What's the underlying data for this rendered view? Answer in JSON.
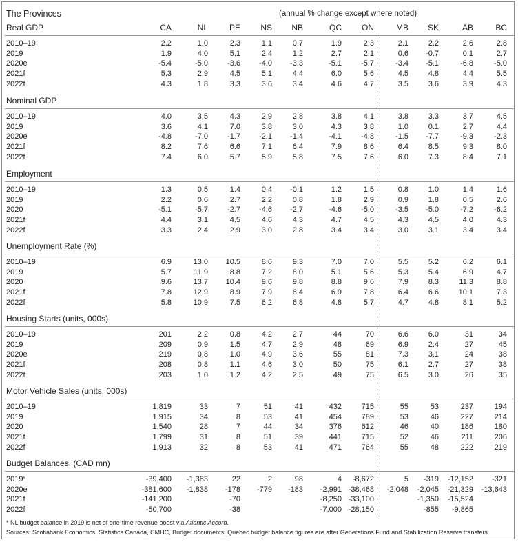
{
  "title": "The Provinces",
  "subtitle": "(annual % change except where noted)",
  "columns": [
    "CA",
    "NL",
    "PE",
    "NS",
    "NB",
    "QC",
    "ON",
    "MB",
    "SK",
    "AB",
    "BC"
  ],
  "sections": [
    {
      "title": "Real GDP",
      "rows": [
        {
          "label": "2010–19",
          "values": [
            "2.2",
            "1.0",
            "2.3",
            "1.1",
            "0.7",
            "1.9",
            "2.3",
            "2.1",
            "2.2",
            "2.6",
            "2.8"
          ]
        },
        {
          "label": "2019",
          "values": [
            "1.9",
            "4.0",
            "5.1",
            "2.4",
            "1.2",
            "2.7",
            "2.1",
            "0.6",
            "-0.7",
            "0.1",
            "2.7"
          ]
        },
        {
          "label": "2020e",
          "values": [
            "-5.4",
            "-5.0",
            "-3.6",
            "-4.0",
            "-3.3",
            "-5.1",
            "-5.7",
            "-3.4",
            "-5.1",
            "-6.8",
            "-5.0"
          ]
        },
        {
          "label": "2021f",
          "values": [
            "5.3",
            "2.9",
            "4.5",
            "5.1",
            "4.4",
            "6.0",
            "5.6",
            "4.5",
            "4.8",
            "4.4",
            "5.5"
          ]
        },
        {
          "label": "2022f",
          "values": [
            "4.3",
            "1.8",
            "3.3",
            "3.6",
            "3.4",
            "4.6",
            "4.7",
            "3.5",
            "3.6",
            "3.9",
            "4.3"
          ]
        }
      ]
    },
    {
      "title": "Nominal GDP",
      "rows": [
        {
          "label": "2010–19",
          "values": [
            "4.0",
            "3.5",
            "4.3",
            "2.9",
            "2.8",
            "3.8",
            "4.1",
            "3.8",
            "3.3",
            "3.7",
            "4.5"
          ]
        },
        {
          "label": "2019",
          "values": [
            "3.6",
            "4.1",
            "7.0",
            "3.8",
            "3.0",
            "4.3",
            "3.8",
            "1.0",
            "0.1",
            "2.7",
            "4.4"
          ]
        },
        {
          "label": "2020e",
          "values": [
            "-4.8",
            "-7.0",
            "-1.7",
            "-2.1",
            "-1.4",
            "-4.1",
            "-4.8",
            "-1.5",
            "-7.7",
            "-9.3",
            "-2.3"
          ]
        },
        {
          "label": "2021f",
          "values": [
            "8.2",
            "7.6",
            "6.6",
            "7.1",
            "6.4",
            "7.9",
            "8.6",
            "6.4",
            "8.5",
            "9.3",
            "8.0"
          ]
        },
        {
          "label": "2022f",
          "values": [
            "7.4",
            "6.0",
            "5.7",
            "5.9",
            "5.8",
            "7.5",
            "7.6",
            "6.0",
            "7.3",
            "8.4",
            "7.1"
          ]
        }
      ]
    },
    {
      "title": "Employment",
      "rows": [
        {
          "label": "2010–19",
          "values": [
            "1.3",
            "0.5",
            "1.4",
            "0.4",
            "-0.1",
            "1.2",
            "1.5",
            "0.8",
            "1.0",
            "1.4",
            "1.6"
          ]
        },
        {
          "label": "2019",
          "values": [
            "2.2",
            "0.6",
            "2.7",
            "2.2",
            "0.8",
            "1.8",
            "2.9",
            "0.9",
            "1.8",
            "0.5",
            "2.6"
          ]
        },
        {
          "label": "2020",
          "values": [
            "-5.1",
            "-5.7",
            "-2.7",
            "-4.6",
            "-2.7",
            "-4.6",
            "-5.0",
            "-3.5",
            "-5.0",
            "-7.2",
            "-6.2"
          ]
        },
        {
          "label": "2021f",
          "values": [
            "4.4",
            "3.1",
            "4.5",
            "4.6",
            "4.3",
            "4.7",
            "4.5",
            "4.3",
            "4.5",
            "4.0",
            "4.3"
          ]
        },
        {
          "label": "2022f",
          "values": [
            "3.3",
            "2.4",
            "2.9",
            "3.0",
            "2.8",
            "3.4",
            "3.4",
            "3.0",
            "3.1",
            "3.4",
            "3.4"
          ]
        }
      ]
    },
    {
      "title": "Unemployment Rate (%)",
      "rows": [
        {
          "label": "2010–19",
          "values": [
            "6.9",
            "13.0",
            "10.5",
            "8.6",
            "9.3",
            "7.0",
            "7.0",
            "5.5",
            "5.2",
            "6.2",
            "6.1"
          ]
        },
        {
          "label": "2019",
          "values": [
            "5.7",
            "11.9",
            "8.8",
            "7.2",
            "8.0",
            "5.1",
            "5.6",
            "5.3",
            "5.4",
            "6.9",
            "4.7"
          ]
        },
        {
          "label": "2020",
          "values": [
            "9.6",
            "13.7",
            "10.4",
            "9.6",
            "9.8",
            "8.8",
            "9.6",
            "7.9",
            "8.3",
            "11.3",
            "8.8"
          ]
        },
        {
          "label": "2021f",
          "values": [
            "7.8",
            "12.9",
            "8.9",
            "7.9",
            "8.4",
            "6.9",
            "7.8",
            "6.4",
            "6.6",
            "10.1",
            "7.3"
          ]
        },
        {
          "label": "2022f",
          "values": [
            "5.8",
            "10.9",
            "7.5",
            "6.2",
            "6.8",
            "4.8",
            "5.7",
            "4.7",
            "4.8",
            "8.1",
            "5.2"
          ]
        }
      ]
    },
    {
      "title": "Housing Starts (units, 000s)",
      "rows": [
        {
          "label": "2010–19",
          "values": [
            "201",
            "2.2",
            "0.8",
            "4.2",
            "2.7",
            "44",
            "70",
            "6.6",
            "6.0",
            "31",
            "34"
          ]
        },
        {
          "label": "2019",
          "values": [
            "209",
            "0.9",
            "1.5",
            "4.7",
            "2.9",
            "48",
            "69",
            "6.9",
            "2.4",
            "27",
            "45"
          ]
        },
        {
          "label": "2020e",
          "values": [
            "219",
            "0.8",
            "1.0",
            "4.9",
            "3.6",
            "55",
            "81",
            "7.3",
            "3.1",
            "24",
            "38"
          ]
        },
        {
          "label": "2021f",
          "values": [
            "208",
            "0.8",
            "1.1",
            "4.6",
            "3.0",
            "50",
            "75",
            "6.1",
            "2.7",
            "27",
            "38"
          ]
        },
        {
          "label": "2022f",
          "values": [
            "203",
            "1.0",
            "1.2",
            "4.2",
            "2.5",
            "49",
            "75",
            "6.5",
            "3.0",
            "26",
            "35"
          ]
        }
      ]
    },
    {
      "title": "Motor Vehicle Sales (units, 000s)",
      "rows": [
        {
          "label": "2010–19",
          "values": [
            "1,819",
            "33",
            "7",
            "51",
            "41",
            "432",
            "715",
            "55",
            "53",
            "237",
            "194"
          ]
        },
        {
          "label": "2019",
          "values": [
            "1,915",
            "34",
            "8",
            "53",
            "41",
            "454",
            "789",
            "53",
            "46",
            "227",
            "214"
          ]
        },
        {
          "label": "2020",
          "values": [
            "1,540",
            "28",
            "7",
            "44",
            "34",
            "376",
            "612",
            "46",
            "40",
            "186",
            "180"
          ]
        },
        {
          "label": "2021f",
          "values": [
            "1,799",
            "31",
            "8",
            "51",
            "39",
            "441",
            "715",
            "52",
            "46",
            "211",
            "206"
          ]
        },
        {
          "label": "2022f",
          "values": [
            "1,913",
            "32",
            "8",
            "53",
            "41",
            "471",
            "764",
            "55",
            "48",
            "222",
            "219"
          ]
        }
      ]
    },
    {
      "title": "Budget Balances, (CAD mn)",
      "rows": [
        {
          "label": "2019",
          "sup": "*",
          "values": [
            "-39,400",
            "-1,383",
            "22",
            "2",
            "98",
            "4",
            "-8,672",
            "5",
            "-319",
            "-12,152",
            "-321"
          ]
        },
        {
          "label": "2020e",
          "values": [
            "-381,600",
            "-1,838",
            "-178",
            "-779",
            "-183",
            "-2,991",
            "-38,468",
            "-2,048",
            "-2,045",
            "-21,329",
            "-13,643"
          ]
        },
        {
          "label": "2021f",
          "values": [
            "-141,200",
            "",
            "-70",
            "",
            "",
            "-8,250",
            "-33,100",
            "",
            "-1,350",
            "-15,524",
            ""
          ]
        },
        {
          "label": "2022f",
          "values": [
            "-50,700",
            "",
            "-38",
            "",
            "",
            "-7,000",
            "-28,150",
            "",
            "-855",
            "-9,865",
            ""
          ]
        }
      ]
    }
  ],
  "footnote_prefix": "* NL budget balance in 2019 is net of one-time revenue boost via ",
  "footnote_italic": "Atlantic Accord",
  "footnote_suffix": ".",
  "sources": "Sources: Scotiabank Economics, Statistics Canada, CMHC, Budget documents; Quebec budget balance figures are after Generations Fund and Stabilization Reserve transfers."
}
